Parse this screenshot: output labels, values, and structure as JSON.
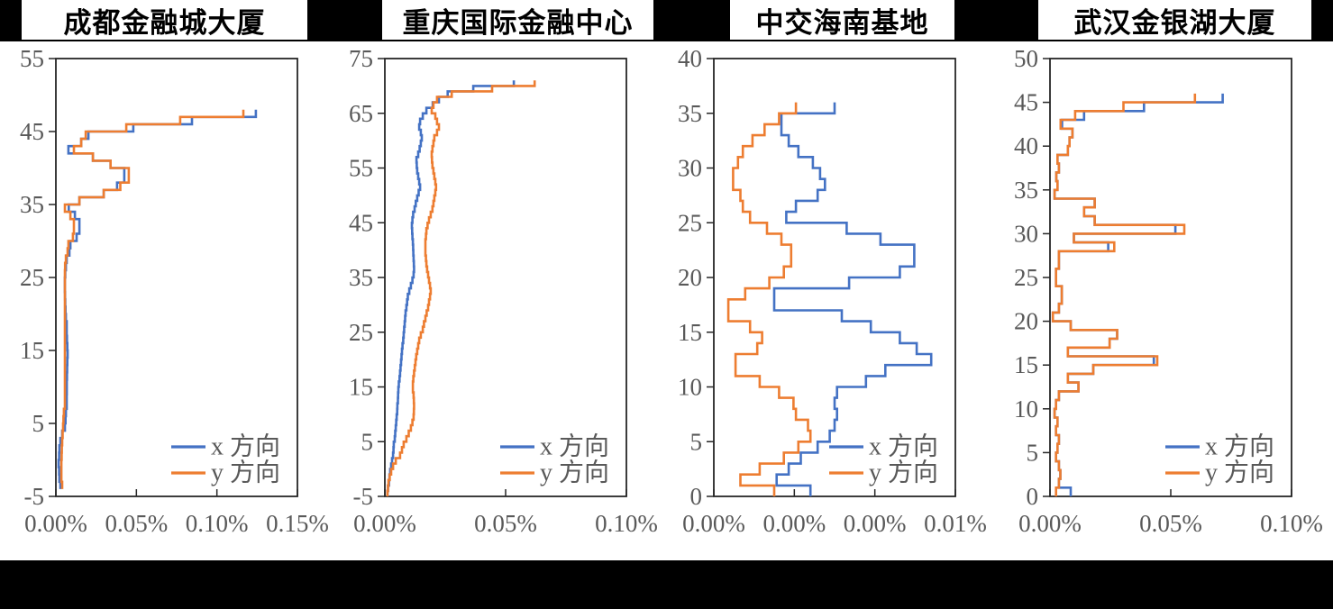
{
  "figure": {
    "kind": "story-drift-profiles",
    "legend": {
      "x_label": "x 方向",
      "y_label": "y 方向"
    },
    "colors": {
      "x_series": "#4472C4",
      "y_series": "#ED7D31",
      "axis_text": "#595959",
      "frame": "#262626",
      "band_bg": "#000000",
      "title_bg": "#ffffff",
      "title_text": "#000000"
    }
  },
  "chart_data": [
    {
      "type": "line",
      "step_profile": true,
      "title": "成都金融城大厦",
      "xlabel": "",
      "ylabel": "",
      "x_tick_labels": [
        "0.00%",
        "0.05%",
        "0.10%",
        "0.15%"
      ],
      "xlim": [
        0,
        0.15
      ],
      "ylim": [
        -5,
        55
      ],
      "y_tick_step": 10,
      "grid": false,
      "legend_position": "inside-bottom-right",
      "floor_start": -3,
      "series": [
        {
          "name": "x 方向",
          "color_key": "x_series",
          "values": [
            0.0028,
            0.0022,
            0.002,
            0.0017,
            0.002,
            0.0022,
            0.0028,
            0.0039,
            0.0056,
            0.006,
            0.0062,
            0.0067,
            0.0067,
            0.0068,
            0.0068,
            0.0069,
            0.007,
            0.0071,
            0.0073,
            0.0071,
            0.0069,
            0.0067,
            0.0067,
            0.0062,
            0.006,
            0.0058,
            0.0057,
            0.0056,
            0.0056,
            0.0058,
            0.0062,
            0.0067,
            0.0084,
            0.009,
            0.0129,
            0.0146,
            0.0146,
            0.0118,
            0.008,
            0.0146,
            0.0297,
            0.038,
            0.0425,
            0.0425,
            0.034,
            0.023,
            0.0078,
            0.0157,
            0.0202,
            0.0481,
            0.0845,
            0.1242
          ]
        },
        {
          "name": "y 方向",
          "color_key": "y_series",
          "values": [
            0.0039,
            0.0034,
            0.0034,
            0.0034,
            0.0036,
            0.0037,
            0.0039,
            0.0042,
            0.0045,
            0.0047,
            0.005,
            0.0056,
            0.0056,
            0.0056,
            0.0056,
            0.0056,
            0.0056,
            0.0056,
            0.0056,
            0.0056,
            0.0056,
            0.0056,
            0.0056,
            0.0056,
            0.0056,
            0.0056,
            0.0056,
            0.0056,
            0.0056,
            0.0056,
            0.0057,
            0.0062,
            0.0073,
            0.0078,
            0.0106,
            0.0112,
            0.0112,
            0.009,
            0.0056,
            0.0146,
            0.0297,
            0.04,
            0.0453,
            0.0453,
            0.034,
            0.023,
            0.0112,
            0.0157,
            0.0185,
            0.0437,
            0.0772,
            0.1164
          ]
        }
      ]
    },
    {
      "type": "line",
      "step_profile": true,
      "title": "重庆国际金融中心",
      "xlabel": "",
      "ylabel": "",
      "x_tick_labels": [
        "0.00%",
        "0.05%",
        "0.10%"
      ],
      "xlim": [
        0,
        0.1
      ],
      "ylim": [
        -5,
        75
      ],
      "y_tick_step": 10,
      "grid": false,
      "legend_position": "inside-bottom-right",
      "floor_start": -4,
      "series": [
        {
          "name": "x 方向",
          "color_key": "x_series",
          "values": [
            0.0011,
            0.0013,
            0.0017,
            0.0019,
            0.0022,
            0.0026,
            0.003,
            0.0034,
            0.0036,
            0.0037,
            0.0041,
            0.0043,
            0.0045,
            0.0047,
            0.0049,
            0.0051,
            0.0052,
            0.0054,
            0.0055,
            0.0056,
            0.0058,
            0.0061,
            0.0063,
            0.0065,
            0.0067,
            0.0069,
            0.0071,
            0.0073,
            0.0076,
            0.0078,
            0.008,
            0.0082,
            0.0084,
            0.0086,
            0.0089,
            0.0092,
            0.0095,
            0.0101,
            0.0108,
            0.0114,
            0.0119,
            0.0121,
            0.012,
            0.0119,
            0.0118,
            0.0117,
            0.0116,
            0.0114,
            0.0113,
            0.0112,
            0.0114,
            0.0117,
            0.0123,
            0.0128,
            0.0134,
            0.014,
            0.0146,
            0.0142,
            0.0138,
            0.0134,
            0.0132,
            0.0131,
            0.0138,
            0.0144,
            0.0149,
            0.0153,
            0.0149,
            0.0142,
            0.0146,
            0.0157,
            0.0172,
            0.0198,
            0.0224,
            0.026,
            0.0366,
            0.0534
          ]
        },
        {
          "name": "y 方向",
          "color_key": "y_series",
          "values": [
            0.0011,
            0.0013,
            0.0015,
            0.002,
            0.0026,
            0.0034,
            0.0045,
            0.0063,
            0.0071,
            0.0078,
            0.0089,
            0.0099,
            0.0108,
            0.0114,
            0.0119,
            0.012,
            0.0121,
            0.012,
            0.0119,
            0.0116,
            0.0116,
            0.0118,
            0.0121,
            0.0124,
            0.0127,
            0.013,
            0.0134,
            0.0138,
            0.0142,
            0.0149,
            0.0157,
            0.0162,
            0.0168,
            0.0173,
            0.0179,
            0.0183,
            0.0187,
            0.019,
            0.0187,
            0.0183,
            0.0179,
            0.0175,
            0.0172,
            0.017,
            0.0168,
            0.0168,
            0.0168,
            0.017,
            0.0172,
            0.0177,
            0.0183,
            0.019,
            0.0197,
            0.0201,
            0.0205,
            0.0209,
            0.0212,
            0.0209,
            0.0205,
            0.0201,
            0.0197,
            0.0195,
            0.0194,
            0.0197,
            0.0201,
            0.0205,
            0.0216,
            0.0224,
            0.0216,
            0.0209,
            0.0194,
            0.0201,
            0.0216,
            0.0277,
            0.0444,
            0.062
          ]
        }
      ]
    },
    {
      "type": "line",
      "step_profile": true,
      "title": "中交海南基地",
      "xlabel": "",
      "ylabel": "",
      "x_tick_labels": [
        "0.00%",
        "0.00%",
        "0.00%",
        "0.01%"
      ],
      "xlim": [
        0,
        0.01
      ],
      "ylim": [
        0,
        40
      ],
      "y_tick_step": 5,
      "grid": false,
      "legend_position": "inside-bottom-right",
      "floor_start": 1,
      "series": [
        {
          "name": "x 方向",
          "color_key": "x_series",
          "values": [
            0.004,
            0.0026,
            0.0031,
            0.0036,
            0.0043,
            0.0048,
            0.005,
            0.0051,
            0.005,
            0.0051,
            0.0063,
            0.0071,
            0.009,
            0.0084,
            0.0077,
            0.0065,
            0.0053,
            0.0025,
            0.0025,
            0.0056,
            0.0077,
            0.0083,
            0.0083,
            0.0069,
            0.0055,
            0.003,
            0.0034,
            0.0043,
            0.0046,
            0.0044,
            0.0041,
            0.0035,
            0.0031,
            0.0028,
            0.0028,
            0.005
          ]
        },
        {
          "name": "y 方向",
          "color_key": "y_series",
          "values": [
            0.0025,
            0.0011,
            0.0019,
            0.0029,
            0.0035,
            0.004,
            0.0039,
            0.0034,
            0.0033,
            0.0027,
            0.0019,
            0.0009,
            0.0009,
            0.0018,
            0.002,
            0.0015,
            0.0006,
            0.0006,
            0.0013,
            0.0023,
            0.0029,
            0.0032,
            0.0032,
            0.0028,
            0.0022,
            0.0015,
            0.0012,
            0.0011,
            0.0008,
            0.0008,
            0.001,
            0.0012,
            0.0016,
            0.0021,
            0.0027,
            0.0034
          ]
        }
      ]
    },
    {
      "type": "line",
      "step_profile": true,
      "title": "武汉金银湖大厦",
      "xlabel": "",
      "ylabel": "",
      "x_tick_labels": [
        "0.00%",
        "0.05%",
        "0.10%"
      ],
      "xlim": [
        0,
        0.1
      ],
      "ylim": [
        0,
        50
      ],
      "y_tick_step": 5,
      "grid": false,
      "legend_position": "inside-bottom-right",
      "floor_start": 1,
      "series": [
        {
          "name": "x 方向",
          "color_key": "x_series",
          "values": [
            0.0086,
            0.0037,
            0.0043,
            0.0037,
            0.0025,
            0.0031,
            0.0037,
            0.0025,
            0.0031,
            0.0019,
            0.0025,
            0.0037,
            0.0118,
            0.0074,
            0.0179,
            0.043,
            0.0074,
            0.0247,
            0.0278,
            0.0086,
            0.0012,
            0.0037,
            0.0049,
            0.0049,
            0.0025,
            0.0025,
            0.0037,
            0.0037,
            0.0241,
            0.0099,
            0.0519,
            0.0185,
            0.0141,
            0.0185,
            0.0019,
            0.0031,
            0.0026,
            0.0037,
            0.0031,
            0.0074,
            0.0081,
            0.0093,
            0.005,
            0.0141,
            0.0389,
            0.0715
          ]
        },
        {
          "name": "y 方向",
          "color_key": "y_series",
          "values": [
            0.0025,
            0.0037,
            0.0043,
            0.0037,
            0.0025,
            0.0031,
            0.0037,
            0.0025,
            0.0031,
            0.0019,
            0.0025,
            0.0037,
            0.0118,
            0.0074,
            0.0179,
            0.0444,
            0.0074,
            0.0247,
            0.0278,
            0.0086,
            0.0012,
            0.0037,
            0.0049,
            0.0049,
            0.0025,
            0.0025,
            0.0037,
            0.0037,
            0.0266,
            0.0099,
            0.0556,
            0.0185,
            0.0141,
            0.0185,
            0.0019,
            0.0031,
            0.0026,
            0.0037,
            0.0031,
            0.0074,
            0.0081,
            0.0093,
            0.0044,
            0.0104,
            0.0304,
            0.06
          ]
        }
      ]
    }
  ]
}
